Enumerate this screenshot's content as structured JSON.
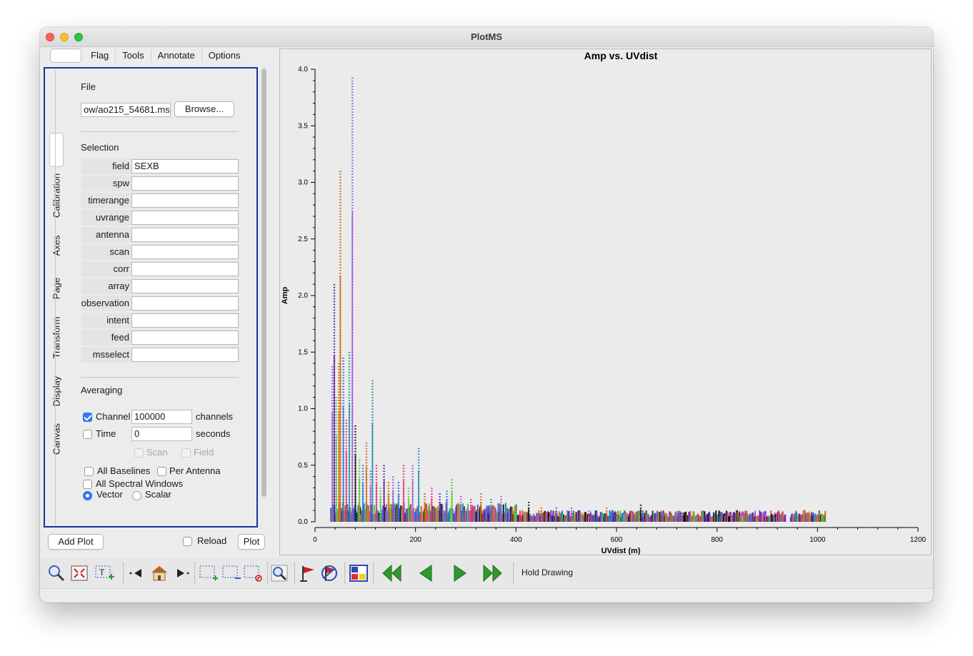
{
  "window": {
    "title": "PlotMS"
  },
  "menu_tabs": [
    "Flag",
    "Tools",
    "Annotate",
    "Options"
  ],
  "side_tabs": [
    "Calibration",
    "Axes",
    "Page",
    "Transform",
    "Display",
    "Canvas"
  ],
  "file": {
    "heading": "File",
    "path": "ow/ao215_54681.ms",
    "browse_label": "Browse..."
  },
  "selection": {
    "heading": "Selection",
    "fields": [
      {
        "label": "field",
        "value": "SEXB"
      },
      {
        "label": "spw",
        "value": ""
      },
      {
        "label": "timerange",
        "value": ""
      },
      {
        "label": "uvrange",
        "value": ""
      },
      {
        "label": "antenna",
        "value": ""
      },
      {
        "label": "scan",
        "value": ""
      },
      {
        "label": "corr",
        "value": ""
      },
      {
        "label": "array",
        "value": ""
      },
      {
        "label": "observation",
        "value": ""
      },
      {
        "label": "intent",
        "value": ""
      },
      {
        "label": "feed",
        "value": ""
      },
      {
        "label": "msselect",
        "value": ""
      }
    ]
  },
  "averaging": {
    "heading": "Averaging",
    "channel_label": "Channel",
    "channel_value": "100000",
    "channel_unit": "channels",
    "channel_checked": true,
    "time_label": "Time",
    "time_value": "0",
    "time_unit": "seconds",
    "time_checked": false,
    "scan_label": "Scan",
    "field_label": "Field",
    "all_baselines_label": "All Baselines",
    "per_antenna_label": "Per Antenna",
    "all_spw_label": "All Spectral Windows",
    "vector_label": "Vector",
    "scalar_label": "Scalar",
    "selected_mode": "Vector"
  },
  "bottom_controls": {
    "add_plot_label": "Add Plot",
    "reload_label": "Reload",
    "plot_label": "Plot"
  },
  "toolbar": {
    "hold_drawing_label": "Hold Drawing"
  },
  "chart_data": {
    "type": "scatter",
    "title": "Amp vs. UVdist",
    "xlabel": "UVdist (m)",
    "ylabel": "Amp",
    "xlim": [
      0,
      1200
    ],
    "ylim": [
      0,
      4.0
    ],
    "xticks": [
      "0",
      "200",
      "400",
      "600",
      "800",
      "1000",
      "1200"
    ],
    "yticks": [
      "0.0",
      "0.5",
      "1.0",
      "1.5",
      "2.0",
      "2.5",
      "3.0",
      "3.5",
      "4.0"
    ],
    "colors": [
      "#9b59d6",
      "#c86b0f",
      "#1f8fa0",
      "#e0307a",
      "#2b6fd6",
      "#55c93a",
      "#5a1a9e",
      "#111111",
      "#e0702a",
      "#7f2ab0"
    ],
    "spikes": [
      {
        "x": 34,
        "ymax": 1.38,
        "color": "#9b59d6"
      },
      {
        "x": 38,
        "ymax": 2.1,
        "color": "#5a1a9e"
      },
      {
        "x": 42,
        "ymax": 1.1,
        "color": "#55c93a"
      },
      {
        "x": 47,
        "ymax": 1.4,
        "color": "#e0702a"
      },
      {
        "x": 50,
        "ymax": 3.1,
        "color": "#c86b0f"
      },
      {
        "x": 56,
        "ymax": 1.45,
        "color": "#2b6fd6"
      },
      {
        "x": 62,
        "ymax": 0.9,
        "color": "#e0307a"
      },
      {
        "x": 68,
        "ymax": 1.5,
        "color": "#1f8fa0"
      },
      {
        "x": 74,
        "ymax": 3.92,
        "color": "#9b59d6"
      },
      {
        "x": 80,
        "ymax": 0.85,
        "color": "#111111"
      },
      {
        "x": 88,
        "ymax": 0.55,
        "color": "#55c93a"
      },
      {
        "x": 95,
        "ymax": 0.5,
        "color": "#2b6fd6"
      },
      {
        "x": 102,
        "ymax": 0.7,
        "color": "#c86b0f"
      },
      {
        "x": 110,
        "ymax": 0.45,
        "color": "#9b59d6"
      },
      {
        "x": 114,
        "ymax": 1.25,
        "color": "#1f8fa0"
      },
      {
        "x": 122,
        "ymax": 0.5,
        "color": "#e0307a"
      },
      {
        "x": 130,
        "ymax": 0.3,
        "color": "#55c93a"
      },
      {
        "x": 137,
        "ymax": 0.52,
        "color": "#5a1a9e"
      },
      {
        "x": 146,
        "ymax": 0.35,
        "color": "#c86b0f"
      },
      {
        "x": 155,
        "ymax": 0.4,
        "color": "#9b59d6"
      },
      {
        "x": 166,
        "ymax": 0.35,
        "color": "#2b6fd6"
      },
      {
        "x": 176,
        "ymax": 0.52,
        "color": "#e0307a"
      },
      {
        "x": 186,
        "ymax": 0.3,
        "color": "#55c93a"
      },
      {
        "x": 194,
        "ymax": 0.52,
        "color": "#9b59d6"
      },
      {
        "x": 206,
        "ymax": 0.65,
        "color": "#1f8fa0"
      },
      {
        "x": 218,
        "ymax": 0.25,
        "color": "#c86b0f"
      },
      {
        "x": 232,
        "ymax": 0.3,
        "color": "#e0307a"
      },
      {
        "x": 248,
        "ymax": 0.25,
        "color": "#5a1a9e"
      },
      {
        "x": 262,
        "ymax": 0.28,
        "color": "#2b6fd6"
      },
      {
        "x": 272,
        "ymax": 0.38,
        "color": "#55c93a"
      },
      {
        "x": 290,
        "ymax": 0.22,
        "color": "#9b59d6"
      },
      {
        "x": 310,
        "ymax": 0.2,
        "color": "#e0307a"
      },
      {
        "x": 330,
        "ymax": 0.25,
        "color": "#c86b0f"
      },
      {
        "x": 350,
        "ymax": 0.2,
        "color": "#1f8fa0"
      },
      {
        "x": 370,
        "ymax": 0.22,
        "color": "#9b59d6"
      },
      {
        "x": 400,
        "ymax": 0.15,
        "color": "#55c93a"
      },
      {
        "x": 425,
        "ymax": 0.18,
        "color": "#111111"
      },
      {
        "x": 450,
        "ymax": 0.14,
        "color": "#c86b0f"
      },
      {
        "x": 480,
        "ymax": 0.12,
        "color": "#2b6fd6"
      },
      {
        "x": 510,
        "ymax": 0.12,
        "color": "#e0307a"
      },
      {
        "x": 545,
        "ymax": 0.1,
        "color": "#9b59d6"
      },
      {
        "x": 580,
        "ymax": 0.12,
        "color": "#c86b0f"
      },
      {
        "x": 615,
        "ymax": 0.1,
        "color": "#55c93a"
      },
      {
        "x": 648,
        "ymax": 0.16,
        "color": "#111111"
      },
      {
        "x": 690,
        "ymax": 0.09,
        "color": "#1f8fa0"
      },
      {
        "x": 730,
        "ymax": 0.08,
        "color": "#2b6fd6"
      },
      {
        "x": 770,
        "ymax": 0.07,
        "color": "#9b59d6"
      },
      {
        "x": 810,
        "ymax": 0.07,
        "color": "#c86b0f"
      },
      {
        "x": 850,
        "ymax": 0.06,
        "color": "#55c93a"
      },
      {
        "x": 890,
        "ymax": 0.06,
        "color": "#e0702a"
      },
      {
        "x": 960,
        "ymax": 0.06,
        "color": "#55c93a"
      },
      {
        "x": 1000,
        "ymax": 0.05,
        "color": "#e0702a"
      }
    ],
    "baseband": {
      "x_start": 30,
      "x_end": 1015,
      "ymax": 0.08,
      "gap": [
        935,
        945
      ]
    }
  }
}
